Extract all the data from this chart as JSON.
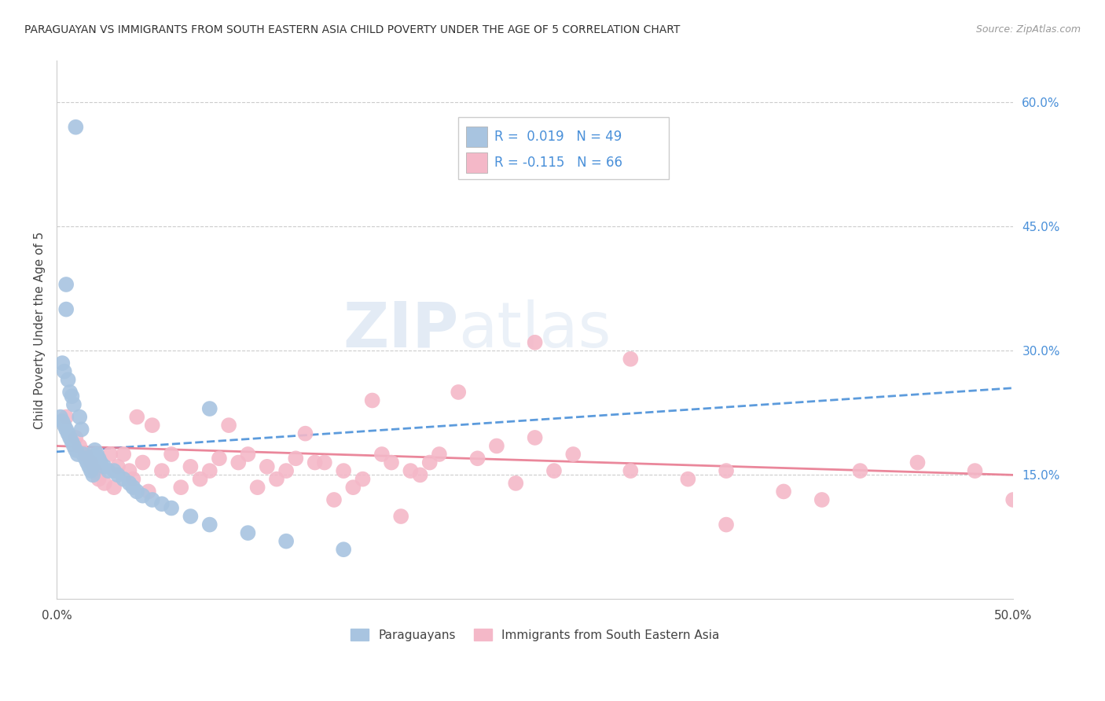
{
  "title": "PARAGUAYAN VS IMMIGRANTS FROM SOUTH EASTERN ASIA CHILD POVERTY UNDER THE AGE OF 5 CORRELATION CHART",
  "source": "Source: ZipAtlas.com",
  "ylabel": "Child Poverty Under the Age of 5",
  "xlim": [
    0.0,
    0.5
  ],
  "ylim": [
    0.0,
    0.65
  ],
  "ytick_right_labels": [
    "60.0%",
    "45.0%",
    "30.0%",
    "15.0%"
  ],
  "ytick_right_values": [
    0.6,
    0.45,
    0.3,
    0.15
  ],
  "blue_color": "#a8c4e0",
  "pink_color": "#f4b8c8",
  "blue_line_color": "#4a90d9",
  "pink_line_color": "#e87a90",
  "watermark_zip": "ZIP",
  "watermark_atlas": "atlas",
  "legend_label_paraguayans": "Paraguayans",
  "legend_label_immigrants": "Immigrants from South Eastern Asia",
  "paraguayan_x": [
    0.01,
    0.005,
    0.005,
    0.003,
    0.004,
    0.006,
    0.007,
    0.008,
    0.009,
    0.002,
    0.003,
    0.004,
    0.005,
    0.006,
    0.007,
    0.008,
    0.009,
    0.01,
    0.011,
    0.012,
    0.013,
    0.014,
    0.015,
    0.016,
    0.017,
    0.018,
    0.019,
    0.02,
    0.021,
    0.022,
    0.023,
    0.025,
    0.027,
    0.03,
    0.032,
    0.035,
    0.038,
    0.04,
    0.042,
    0.045,
    0.05,
    0.055,
    0.06,
    0.07,
    0.08,
    0.1,
    0.12,
    0.15,
    0.08
  ],
  "paraguayan_y": [
    0.57,
    0.38,
    0.35,
    0.285,
    0.275,
    0.265,
    0.25,
    0.245,
    0.235,
    0.22,
    0.215,
    0.21,
    0.205,
    0.2,
    0.195,
    0.19,
    0.185,
    0.18,
    0.175,
    0.22,
    0.205,
    0.175,
    0.17,
    0.165,
    0.16,
    0.155,
    0.15,
    0.18,
    0.175,
    0.17,
    0.165,
    0.16,
    0.155,
    0.155,
    0.15,
    0.145,
    0.14,
    0.135,
    0.13,
    0.125,
    0.12,
    0.115,
    0.11,
    0.1,
    0.09,
    0.08,
    0.07,
    0.06,
    0.23
  ],
  "immigrant_x": [
    0.005,
    0.01,
    0.012,
    0.015,
    0.018,
    0.02,
    0.022,
    0.025,
    0.028,
    0.03,
    0.032,
    0.035,
    0.038,
    0.04,
    0.042,
    0.045,
    0.048,
    0.05,
    0.055,
    0.06,
    0.065,
    0.07,
    0.075,
    0.08,
    0.085,
    0.09,
    0.095,
    0.1,
    0.105,
    0.11,
    0.115,
    0.12,
    0.125,
    0.13,
    0.135,
    0.14,
    0.145,
    0.15,
    0.155,
    0.16,
    0.165,
    0.17,
    0.175,
    0.18,
    0.185,
    0.19,
    0.195,
    0.2,
    0.21,
    0.22,
    0.23,
    0.24,
    0.25,
    0.26,
    0.27,
    0.3,
    0.33,
    0.35,
    0.38,
    0.4,
    0.42,
    0.45,
    0.48,
    0.5,
    0.25,
    0.3,
    0.35
  ],
  "immigrant_y": [
    0.22,
    0.195,
    0.185,
    0.175,
    0.165,
    0.155,
    0.145,
    0.14,
    0.175,
    0.135,
    0.16,
    0.175,
    0.155,
    0.145,
    0.22,
    0.165,
    0.13,
    0.21,
    0.155,
    0.175,
    0.135,
    0.16,
    0.145,
    0.155,
    0.17,
    0.21,
    0.165,
    0.175,
    0.135,
    0.16,
    0.145,
    0.155,
    0.17,
    0.2,
    0.165,
    0.165,
    0.12,
    0.155,
    0.135,
    0.145,
    0.24,
    0.175,
    0.165,
    0.1,
    0.155,
    0.15,
    0.165,
    0.175,
    0.25,
    0.17,
    0.185,
    0.14,
    0.195,
    0.155,
    0.175,
    0.155,
    0.145,
    0.155,
    0.13,
    0.12,
    0.155,
    0.165,
    0.155,
    0.12,
    0.31,
    0.29,
    0.09
  ]
}
